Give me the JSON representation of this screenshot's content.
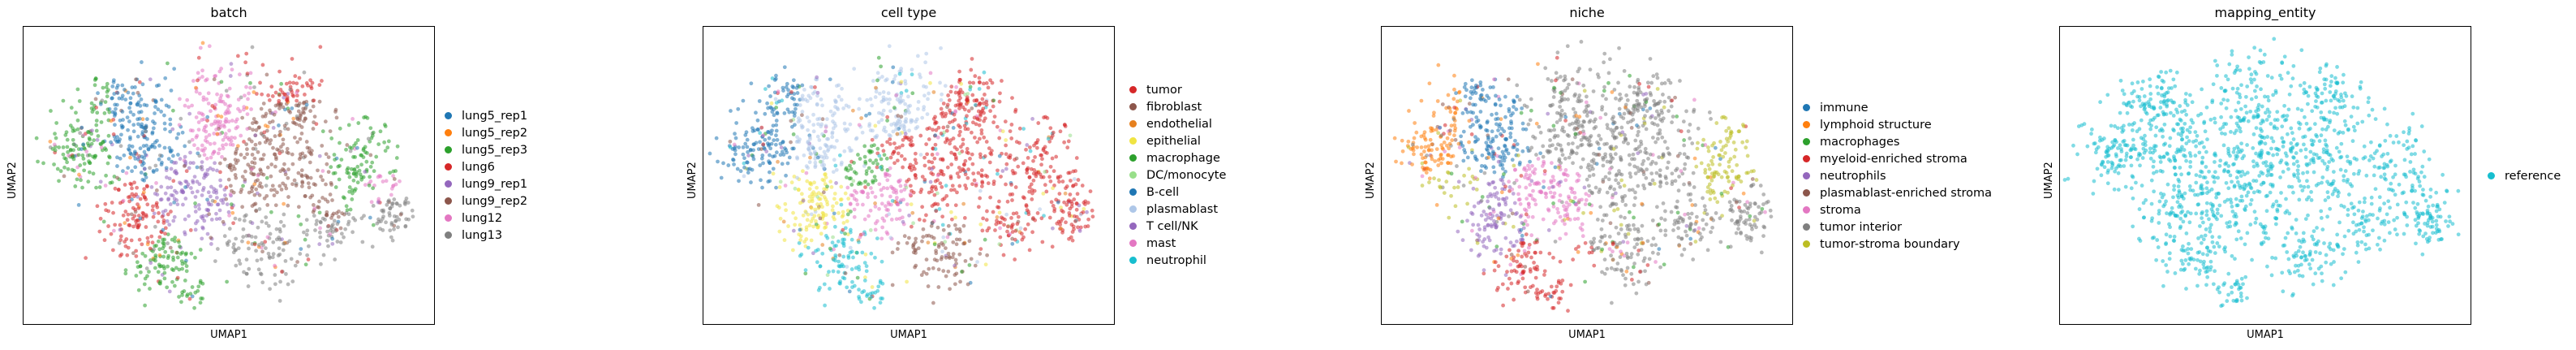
{
  "chart_data": [
    {
      "type": "scatter",
      "title": "batch",
      "xlabel": "UMAP1",
      "ylabel": "UMAP2",
      "legend_placement": "right",
      "series": [
        {
          "name": "lung5_rep1",
          "color": "#1f77b4"
        },
        {
          "name": "lung5_rep2",
          "color": "#ff7f0e"
        },
        {
          "name": "lung5_rep3",
          "color": "#2ca02c"
        },
        {
          "name": "lung6",
          "color": "#d62728"
        },
        {
          "name": "lung9_rep1",
          "color": "#9467bd"
        },
        {
          "name": "lung9_rep2",
          "color": "#8c564b"
        },
        {
          "name": "lung12",
          "color": "#e377c2"
        },
        {
          "name": "lung13",
          "color": "#7f7f7f"
        }
      ]
    },
    {
      "type": "scatter",
      "title": "cell type",
      "xlabel": "UMAP1",
      "ylabel": "UMAP2",
      "legend_placement": "right",
      "series": [
        {
          "name": "tumor",
          "color": "#d62728"
        },
        {
          "name": "fibroblast",
          "color": "#8c564b"
        },
        {
          "name": "endothelial",
          "color": "#e6801e"
        },
        {
          "name": "epithelial",
          "color": "#f0e442"
        },
        {
          "name": "macrophage",
          "color": "#2ca02c"
        },
        {
          "name": "DC/monocyte",
          "color": "#98df8a"
        },
        {
          "name": "B-cell",
          "color": "#1f77b4"
        },
        {
          "name": "plasmablast",
          "color": "#aec7e8"
        },
        {
          "name": "T cell/NK",
          "color": "#9467bd"
        },
        {
          "name": "mast",
          "color": "#e377c2"
        },
        {
          "name": "neutrophil",
          "color": "#17becf"
        }
      ]
    },
    {
      "type": "scatter",
      "title": "niche",
      "xlabel": "UMAP1",
      "ylabel": "UMAP2",
      "legend_placement": "right",
      "series": [
        {
          "name": "immune",
          "color": "#1f77b4"
        },
        {
          "name": "lymphoid structure",
          "color": "#ff7f0e"
        },
        {
          "name": "macrophages",
          "color": "#2ca02c"
        },
        {
          "name": "myeloid-enriched stroma",
          "color": "#d62728"
        },
        {
          "name": "neutrophils",
          "color": "#9467bd"
        },
        {
          "name": "plasmablast-enriched stroma",
          "color": "#8c564b"
        },
        {
          "name": "stroma",
          "color": "#e377c2"
        },
        {
          "name": "tumor interior",
          "color": "#7f7f7f"
        },
        {
          "name": "tumor-stroma boundary",
          "color": "#bcbd22"
        }
      ]
    },
    {
      "type": "scatter",
      "title": "mapping_entity",
      "xlabel": "UMAP1",
      "ylabel": "UMAP2",
      "legend_placement": "right",
      "series": [
        {
          "name": "reference",
          "color": "#17becf"
        }
      ]
    }
  ]
}
